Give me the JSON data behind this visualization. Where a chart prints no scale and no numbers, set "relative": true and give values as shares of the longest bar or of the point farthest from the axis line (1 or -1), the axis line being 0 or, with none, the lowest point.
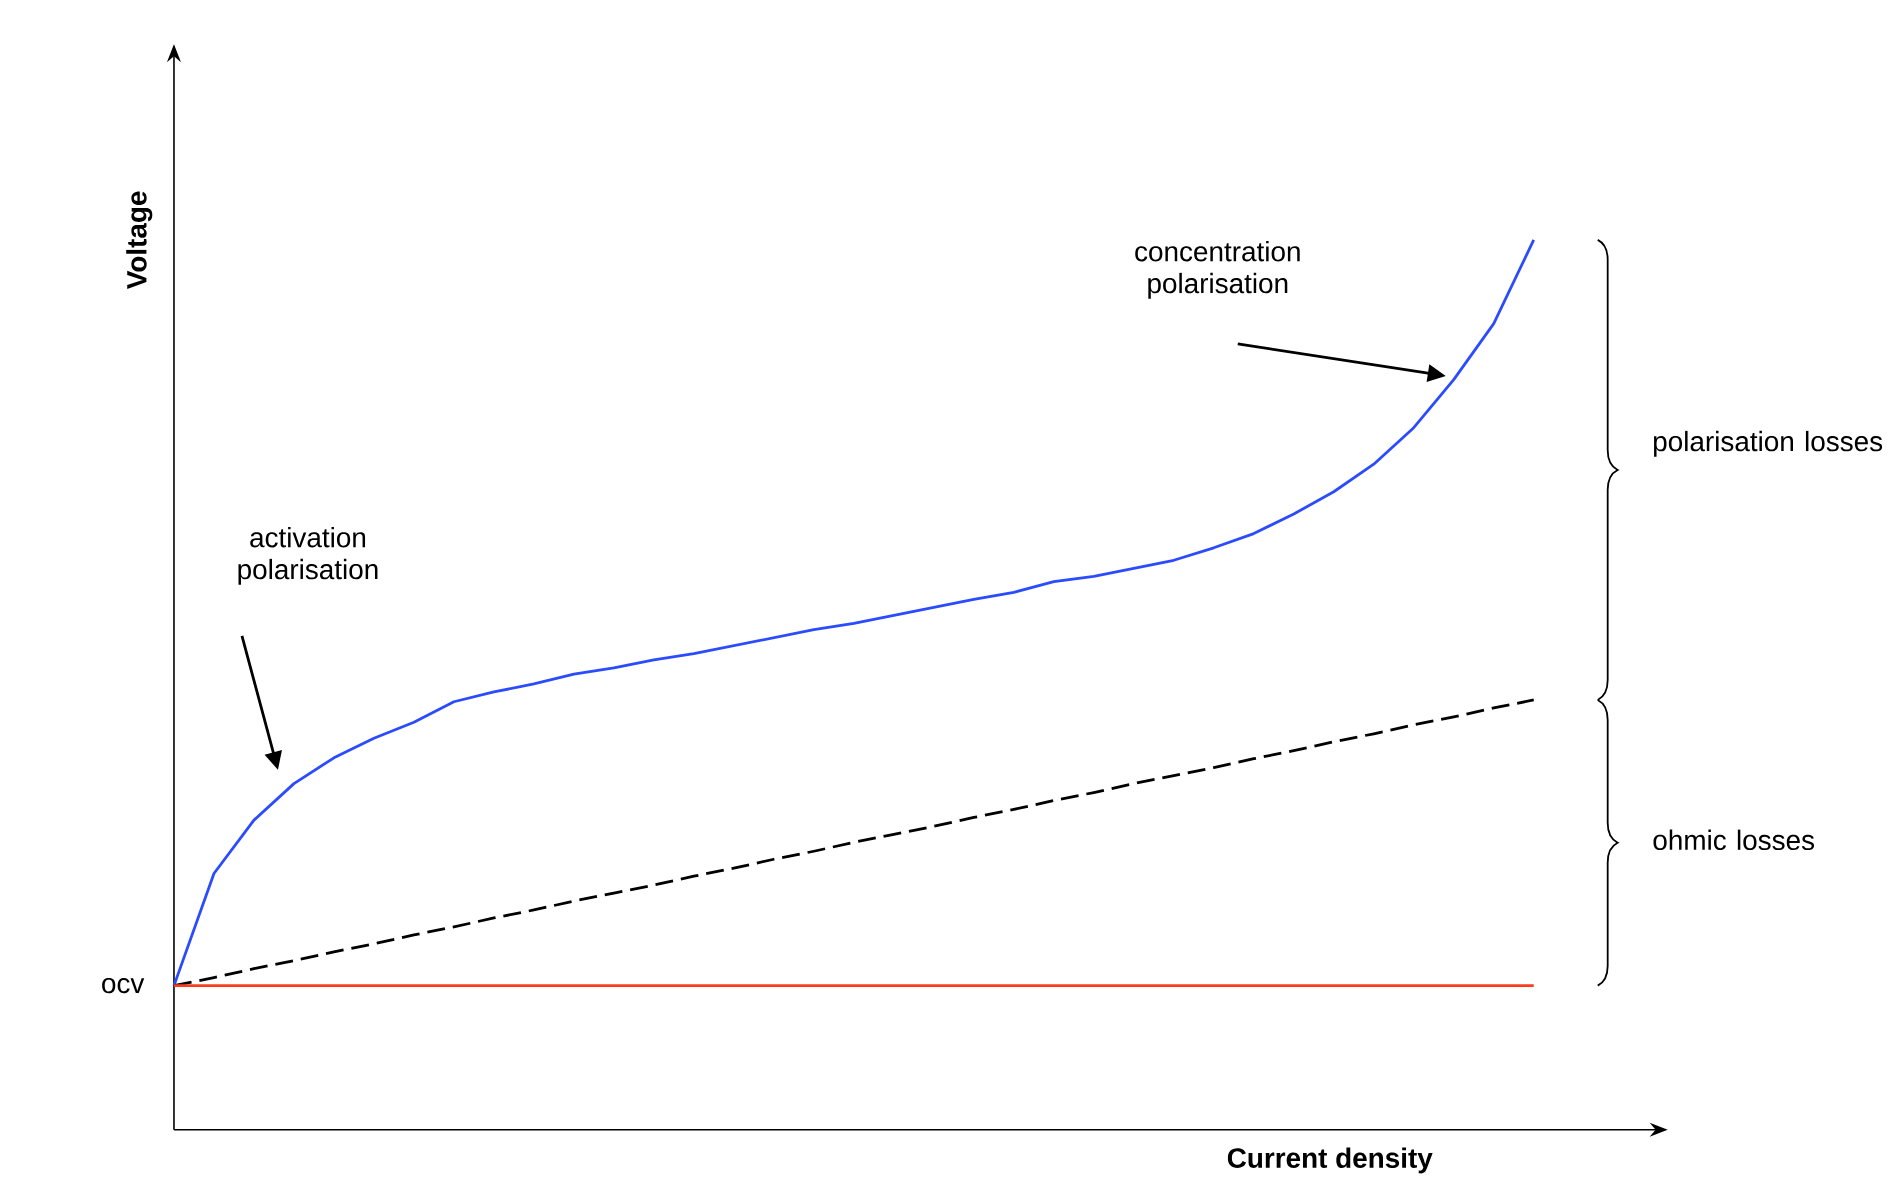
{
  "chart_data": {
    "type": "line",
    "relative": true,
    "xlabel": "Current density",
    "ylabel": "Voltage",
    "categories": [
      null,
      null,
      null,
      null,
      null,
      null,
      null,
      null,
      null,
      null,
      null,
      null,
      null,
      null,
      null,
      null,
      null,
      null,
      null,
      null,
      null,
      null,
      null,
      null,
      null,
      null,
      null,
      null,
      null,
      null,
      null,
      null,
      null,
      null,
      null
    ],
    "series": [
      {
        "color": "#2b4bff",
        "values": [
          0.162,
          0.288,
          0.348,
          0.389,
          0.418,
          0.44,
          0.458,
          0.481,
          0.492,
          0.501,
          0.512,
          0.519,
          0.528,
          0.535,
          0.544,
          0.553,
          0.562,
          0.569,
          0.578,
          0.587,
          0.596,
          0.604,
          0.616,
          0.622,
          0.631,
          0.64,
          0.654,
          0.67,
          0.692,
          0.717,
          0.748,
          0.789,
          0.843,
          0.906,
          1.0
        ]
      },
      {
        "color": "#000000",
        "line_style": "dashed",
        "values": [
          0.162,
          0.171,
          0.181,
          0.19,
          0.2,
          0.209,
          0.219,
          0.228,
          0.238,
          0.247,
          0.257,
          0.266,
          0.275,
          0.285,
          0.294,
          0.304,
          0.313,
          0.323,
          0.332,
          0.341,
          0.351,
          0.36,
          0.37,
          0.379,
          0.389,
          0.398,
          0.407,
          0.417,
          0.426,
          0.436,
          0.445,
          0.455,
          0.464,
          0.474,
          0.483
        ]
      },
      {
        "name": "ocv",
        "color": "#ff3b1f",
        "values": [
          0.162,
          0.162,
          0.162,
          0.162,
          0.162,
          0.162,
          0.162,
          0.162,
          0.162,
          0.162,
          0.162,
          0.162,
          0.162,
          0.162,
          0.162,
          0.162,
          0.162,
          0.162,
          0.162,
          0.162,
          0.162,
          0.162,
          0.162,
          0.162,
          0.162,
          0.162,
          0.162,
          0.162,
          0.162,
          0.162,
          0.162,
          0.162,
          0.162,
          0.162,
          0.162
        ]
      }
    ],
    "annotations": [
      "activation polarisation",
      "concentration polarisation",
      "polarisation losses",
      "ohmic losses"
    ]
  }
}
